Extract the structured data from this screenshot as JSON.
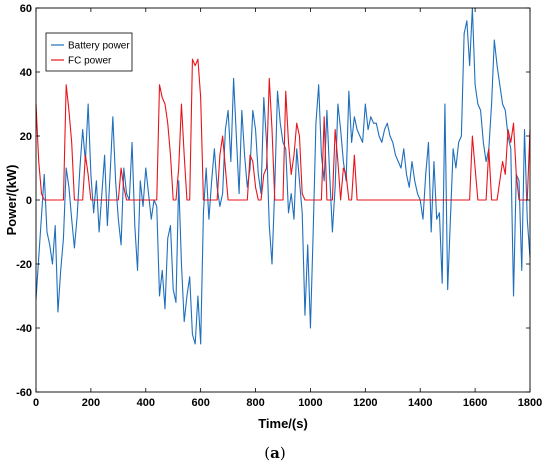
{
  "chart_data": {
    "type": "line",
    "title": "",
    "xlabel": "Time/(s)",
    "ylabel": "Power/(kW)",
    "xlim": [
      0,
      1800
    ],
    "ylim": [
      -60,
      60
    ],
    "xticks": [
      "0",
      "200",
      "400",
      "600",
      "800",
      "1000",
      "1200",
      "1400",
      "1600",
      "1800"
    ],
    "yticks": [
      "60",
      "40",
      "20",
      "0",
      "-20",
      "-40",
      "-60"
    ],
    "grid": false,
    "legend_position": "top-left",
    "series": [
      {
        "name": "Battery power",
        "color": "#1f6fbd",
        "x": [
          0,
          10,
          20,
          30,
          40,
          50,
          60,
          70,
          80,
          90,
          100,
          110,
          120,
          130,
          140,
          150,
          160,
          170,
          180,
          190,
          200,
          210,
          220,
          230,
          240,
          250,
          260,
          270,
          280,
          290,
          300,
          310,
          320,
          330,
          340,
          350,
          360,
          370,
          380,
          390,
          400,
          410,
          420,
          430,
          440,
          450,
          460,
          470,
          480,
          490,
          500,
          510,
          520,
          530,
          540,
          550,
          560,
          570,
          580,
          590,
          600,
          610,
          620,
          630,
          640,
          650,
          660,
          670,
          680,
          690,
          700,
          710,
          720,
          730,
          740,
          750,
          760,
          770,
          780,
          790,
          800,
          810,
          820,
          830,
          840,
          850,
          860,
          870,
          880,
          890,
          900,
          910,
          920,
          930,
          940,
          950,
          960,
          970,
          980,
          990,
          1000,
          1010,
          1020,
          1030,
          1040,
          1050,
          1060,
          1070,
          1080,
          1090,
          1100,
          1110,
          1120,
          1130,
          1140,
          1150,
          1160,
          1170,
          1180,
          1190,
          1200,
          1210,
          1220,
          1230,
          1240,
          1250,
          1260,
          1270,
          1280,
          1290,
          1300,
          1310,
          1320,
          1330,
          1340,
          1350,
          1360,
          1370,
          1380,
          1390,
          1400,
          1410,
          1420,
          1430,
          1440,
          1450,
          1460,
          1470,
          1480,
          1490,
          1500,
          1510,
          1520,
          1530,
          1540,
          1550,
          1560,
          1570,
          1580,
          1590,
          1600,
          1610,
          1620,
          1630,
          1640,
          1650,
          1660,
          1670,
          1680,
          1690,
          1700,
          1710,
          1720,
          1730,
          1740,
          1750,
          1760,
          1770,
          1780,
          1790,
          1800
        ],
        "values": [
          -31,
          -18,
          -5,
          8,
          -10,
          -14,
          -20,
          -8,
          -35,
          -22,
          -12,
          10,
          4,
          -6,
          -15,
          -5,
          10,
          22,
          12,
          30,
          8,
          -4,
          6,
          -10,
          2,
          14,
          -8,
          8,
          26,
          6,
          -6,
          -14,
          10,
          2,
          0,
          18,
          -8,
          -22,
          6,
          -2,
          10,
          2,
          -6,
          0,
          -2,
          -30,
          -22,
          -34,
          -12,
          -8,
          -28,
          -32,
          6,
          -20,
          -38,
          -30,
          -24,
          -42,
          -45,
          -30,
          -45,
          -4,
          10,
          -6,
          6,
          16,
          4,
          -2,
          2,
          22,
          28,
          12,
          38,
          20,
          2,
          28,
          14,
          4,
          10,
          28,
          22,
          8,
          2,
          32,
          18,
          -8,
          -20,
          4,
          34,
          24,
          18,
          16,
          -4,
          2,
          -6,
          16,
          6,
          -4,
          -36,
          -14,
          -40,
          -10,
          24,
          36,
          14,
          6,
          28,
          8,
          -10,
          4,
          30,
          22,
          12,
          6,
          34,
          18,
          26,
          22,
          20,
          18,
          30,
          22,
          26,
          24,
          24,
          20,
          18,
          22,
          24,
          20,
          18,
          14,
          12,
          10,
          16,
          8,
          4,
          12,
          6,
          2,
          0,
          -6,
          8,
          18,
          -10,
          12,
          -6,
          -4,
          -26,
          30,
          -28,
          -6,
          16,
          10,
          18,
          20,
          52,
          56,
          42,
          60,
          36,
          30,
          28,
          18,
          12,
          16,
          30,
          50,
          42,
          36,
          30,
          28,
          20,
          16,
          -30,
          8,
          6,
          -22,
          22,
          -6,
          -18
        ]
      },
      {
        "name": "FC power",
        "color": "#e8141b",
        "x": [
          0,
          10,
          20,
          30,
          40,
          50,
          60,
          70,
          80,
          90,
          100,
          110,
          120,
          130,
          140,
          150,
          160,
          170,
          180,
          190,
          200,
          210,
          220,
          230,
          240,
          250,
          260,
          270,
          280,
          290,
          300,
          310,
          320,
          330,
          340,
          350,
          360,
          370,
          380,
          390,
          400,
          410,
          420,
          430,
          440,
          450,
          460,
          470,
          480,
          490,
          500,
          510,
          520,
          530,
          540,
          550,
          560,
          570,
          580,
          590,
          600,
          610,
          620,
          630,
          640,
          650,
          660,
          670,
          680,
          690,
          700,
          710,
          720,
          730,
          740,
          750,
          760,
          770,
          780,
          790,
          800,
          810,
          820,
          830,
          840,
          850,
          860,
          870,
          880,
          890,
          900,
          910,
          920,
          930,
          940,
          950,
          960,
          970,
          980,
          990,
          1000,
          1010,
          1020,
          1030,
          1040,
          1050,
          1060,
          1070,
          1080,
          1090,
          1100,
          1110,
          1120,
          1130,
          1140,
          1150,
          1160,
          1170,
          1180,
          1190,
          1200,
          1210,
          1220,
          1230,
          1240,
          1250,
          1260,
          1270,
          1280,
          1290,
          1300,
          1310,
          1320,
          1330,
          1340,
          1350,
          1360,
          1370,
          1380,
          1390,
          1400,
          1410,
          1420,
          1430,
          1440,
          1450,
          1460,
          1470,
          1480,
          1490,
          1500,
          1510,
          1520,
          1530,
          1540,
          1550,
          1560,
          1570,
          1580,
          1590,
          1600,
          1610,
          1620,
          1630,
          1640,
          1650,
          1660,
          1670,
          1680,
          1690,
          1700,
          1710,
          1720,
          1730,
          1740,
          1750,
          1760,
          1770,
          1780,
          1790,
          1800
        ],
        "values": [
          30,
          12,
          2,
          0,
          0,
          0,
          0,
          0,
          0,
          0,
          0,
          36,
          28,
          18,
          0,
          0,
          0,
          0,
          14,
          8,
          0,
          0,
          0,
          0,
          0,
          0,
          0,
          0,
          0,
          0,
          0,
          10,
          4,
          0,
          0,
          0,
          0,
          0,
          0,
          0,
          0,
          0,
          0,
          0,
          0,
          36,
          32,
          30,
          24,
          14,
          0,
          0,
          10,
          30,
          14,
          0,
          0,
          44,
          42,
          44,
          32,
          0,
          0,
          0,
          0,
          0,
          0,
          14,
          20,
          10,
          0,
          0,
          0,
          0,
          0,
          0,
          0,
          0,
          14,
          12,
          4,
          0,
          0,
          8,
          10,
          38,
          22,
          0,
          0,
          0,
          0,
          34,
          18,
          8,
          14,
          24,
          20,
          2,
          0,
          0,
          0,
          0,
          0,
          0,
          0,
          26,
          0,
          0,
          0,
          22,
          12,
          0,
          10,
          8,
          0,
          0,
          14,
          0,
          0,
          0,
          0,
          0,
          0,
          0,
          0,
          0,
          0,
          0,
          0,
          0,
          0,
          0,
          0,
          0,
          0,
          0,
          0,
          0,
          0,
          0,
          0,
          0,
          0,
          0,
          0,
          0,
          0,
          0,
          0,
          0,
          0,
          0,
          0,
          0,
          0,
          0,
          0,
          0,
          0,
          20,
          10,
          0,
          0,
          0,
          0,
          16,
          0,
          0,
          0,
          6,
          12,
          8,
          22,
          18,
          24,
          8,
          0,
          0,
          0,
          0,
          22
        ]
      }
    ]
  },
  "caption": {
    "open": "(",
    "letter": "a",
    "close": ")"
  }
}
